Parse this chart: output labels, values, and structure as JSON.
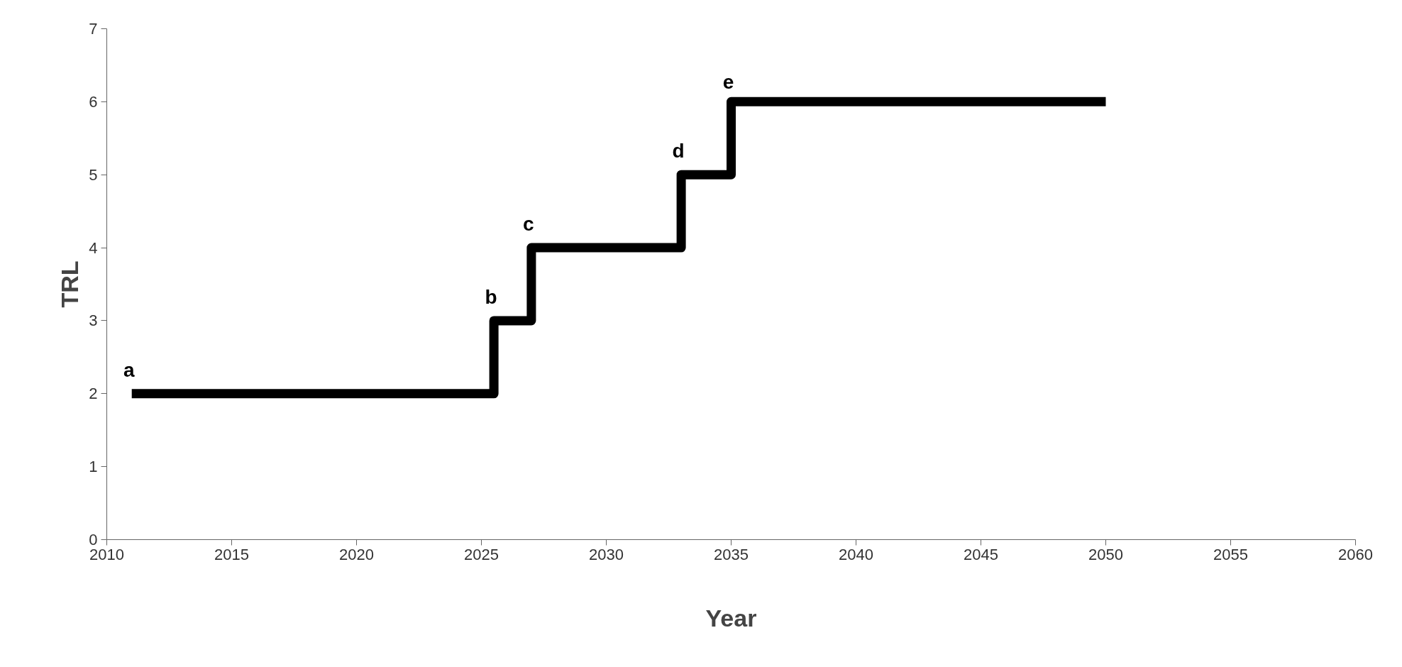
{
  "chart_data": {
    "type": "step",
    "xlabel": "Year",
    "ylabel": "TRL",
    "x": [
      2011,
      2025.5,
      2027,
      2033,
      2035,
      2050
    ],
    "series": [
      {
        "color": "#000000",
        "values": [
          2,
          3,
          4,
          5,
          6,
          6
        ]
      }
    ],
    "xlim": [
      2010,
      2060
    ],
    "xticks": [
      2010,
      2015,
      2020,
      2025,
      2030,
      2035,
      2040,
      2045,
      2050,
      2055,
      2060
    ],
    "ylim": [
      0,
      7
    ],
    "yticks": [
      0,
      1,
      2,
      3,
      4,
      5,
      6,
      7
    ],
    "annotations": [
      {
        "text": "a",
        "x": 2011,
        "y": 2
      },
      {
        "text": "b",
        "x": 2025.5,
        "y": 3
      },
      {
        "text": "c",
        "x": 2027,
        "y": 4
      },
      {
        "text": "d",
        "x": 2033,
        "y": 5
      },
      {
        "text": "e",
        "x": 2035,
        "y": 6
      }
    ],
    "line_style": "solid"
  }
}
